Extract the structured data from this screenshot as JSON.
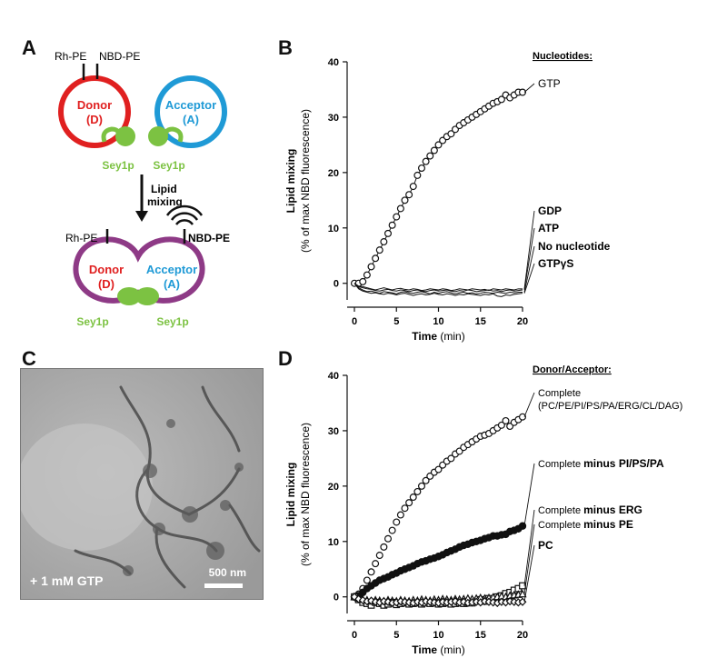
{
  "panels": {
    "a": "A",
    "b": "B",
    "c": "C",
    "d": "D"
  },
  "schematic": {
    "rh_pe": "Rh-PE",
    "nbd_pe_top": "NBD-PE",
    "donor": "Donor",
    "donor_abbr": "(D)",
    "acceptor": "Acceptor",
    "acceptor_abbr": "(A)",
    "sey1p": "Sey1p",
    "lipid": "Lipid",
    "mixing": "mixing",
    "nbd_pe_bottom": "NBD-PE",
    "colors": {
      "donor": "#e02020",
      "acceptor": "#1f9ad6",
      "fused": "#8e3a86",
      "protein": "#7cc242"
    }
  },
  "micrograph": {
    "condition": "+ 1 mM GTP",
    "scale": "500 nm"
  },
  "chart_data": [
    {
      "type": "line",
      "ylabel_line1": "Lipid mixing",
      "ylabel_line2": "(% of max NBD fluorescence)",
      "xlabel_bold": "Time",
      "xlabel_unit": "(min)",
      "xlim": [
        0,
        20
      ],
      "ylim": [
        0,
        40
      ],
      "xticks": [
        0,
        5,
        10,
        15,
        20
      ],
      "yticks": [
        0,
        10,
        20,
        30,
        40
      ],
      "legend_title": "Nucleotides:",
      "x": [
        0,
        0.5,
        1,
        1.5,
        2,
        2.5,
        3,
        3.5,
        4,
        4.5,
        5,
        5.5,
        6,
        6.5,
        7,
        7.5,
        8,
        8.5,
        9,
        9.5,
        10,
        10.5,
        11,
        11.5,
        12,
        12.5,
        13,
        13.5,
        14,
        14.5,
        15,
        15.5,
        16,
        16.5,
        17,
        17.5,
        18,
        18.5,
        19,
        19.5,
        20
      ],
      "series": [
        {
          "name": "GTP",
          "marker": "open-circle",
          "values": [
            0,
            0,
            0.3,
            1.5,
            3,
            4.5,
            6,
            7.5,
            9,
            10.5,
            12,
            13.5,
            15,
            16,
            17.5,
            19.5,
            20.8,
            22,
            23,
            24,
            25,
            25.8,
            26.5,
            27,
            27.8,
            28.5,
            29,
            29.5,
            30,
            30.5,
            31,
            31.5,
            32,
            32.5,
            32.8,
            33.2,
            34,
            33.5,
            34,
            34.5,
            34.5
          ]
        },
        {
          "name": "GDP",
          "marker": "none",
          "values": [
            0,
            -0.5,
            -0.6,
            -0.8,
            -1,
            -1.2,
            -1,
            -0.8,
            -1,
            -1.2,
            -1,
            -0.9,
            -1.1,
            -1.2,
            -1,
            -1.1,
            -1.3,
            -1.2,
            -1,
            -1.1,
            -1.2,
            -1,
            -1.1,
            -1.3,
            -1.2,
            -1,
            -1.1,
            -1.2,
            -1,
            -1.1,
            -1.2,
            -1.1,
            -1.3,
            -1,
            -1.1,
            -1.2,
            -1,
            -1.1,
            -1.2,
            -1,
            -1
          ]
        },
        {
          "name": "ATP",
          "marker": "none",
          "values": [
            0,
            -0.6,
            -0.8,
            -1,
            -1.1,
            -1.3,
            -1.4,
            -1.2,
            -1.1,
            -1.3,
            -1.4,
            -1.2,
            -1.3,
            -1.5,
            -1.3,
            -1.2,
            -1.4,
            -1.5,
            -1.3,
            -1.2,
            -1.4,
            -1.3,
            -1.2,
            -1.4,
            -1.5,
            -1.3,
            -1.4,
            -1.2,
            -1.3,
            -1.5,
            -1.4,
            -1.3,
            -1.2,
            -1.4,
            -1.3,
            -1.5,
            -1.3,
            -1.2,
            -1.4,
            -1.3,
            -1.2
          ]
        },
        {
          "name": "No nucleotide",
          "marker": "none",
          "values": [
            0,
            -0.8,
            -1.2,
            -1.5,
            -1.4,
            -1.6,
            -1.8,
            -1.5,
            -1.6,
            -1.7,
            -1.9,
            -1.6,
            -1.5,
            -1.7,
            -1.8,
            -1.6,
            -1.5,
            -1.7,
            -1.9,
            -1.6,
            -1.8,
            -1.6,
            -1.5,
            -1.7,
            -1.9,
            -1.7,
            -1.6,
            -1.8,
            -1.7,
            -1.9,
            -1.8,
            -1.6,
            -1.7,
            -1.8,
            -1.6,
            -1.7,
            -1.8,
            -1.6,
            -1.7,
            -1.6,
            -1.6
          ]
        },
        {
          "name": "GTPγS",
          "marker": "none",
          "values": [
            0,
            -1,
            -1.4,
            -1.6,
            -1.8,
            -1.7,
            -1.9,
            -2,
            -1.8,
            -1.9,
            -2.1,
            -1.9,
            -1.8,
            -2,
            -2.2,
            -2,
            -1.9,
            -2.1,
            -2,
            -1.8,
            -2,
            -2.1,
            -1.9,
            -2,
            -2.2,
            -2,
            -2.1,
            -1.9,
            -2,
            -2.1,
            -2.2,
            -2,
            -2.1,
            -1.9,
            -2.3,
            -2.4,
            -2.1,
            -2.2,
            -2,
            -1.9,
            -1.8
          ]
        }
      ],
      "legend_labels": [
        "GTP",
        "GDP",
        "ATP",
        "No nucleotide",
        "GTPγS"
      ]
    },
    {
      "type": "scatter",
      "ylabel_line1": "Lipid mixing",
      "ylabel_line2": "(% of max NBD fluorescence)",
      "xlabel_bold": "Time",
      "xlabel_unit": "(min)",
      "xlim": [
        0,
        20
      ],
      "ylim": [
        0,
        40
      ],
      "xticks": [
        0,
        5,
        10,
        15,
        20
      ],
      "yticks": [
        0,
        10,
        20,
        30,
        40
      ],
      "legend_title": "Donor/Acceptor:",
      "x": [
        0,
        0.5,
        1,
        1.5,
        2,
        2.5,
        3,
        3.5,
        4,
        4.5,
        5,
        5.5,
        6,
        6.5,
        7,
        7.5,
        8,
        8.5,
        9,
        9.5,
        10,
        10.5,
        11,
        11.5,
        12,
        12.5,
        13,
        13.5,
        14,
        14.5,
        15,
        15.5,
        16,
        16.5,
        17,
        17.5,
        18,
        18.5,
        19,
        19.5,
        20
      ],
      "series": [
        {
          "name": "Complete",
          "marker": "open-circle",
          "values": [
            0,
            0.5,
            1.5,
            3,
            4.5,
            6,
            7.5,
            9,
            10.5,
            12,
            13.5,
            14.8,
            16,
            17,
            18,
            19,
            20,
            21,
            21.8,
            22.5,
            23,
            23.8,
            24.5,
            25,
            25.8,
            26.3,
            27,
            27.5,
            28,
            28.5,
            29,
            29.2,
            29.5,
            30,
            30.5,
            31,
            31.8,
            30.8,
            31.5,
            32,
            32.5
          ]
        },
        {
          "name": "Complete minus PI/PS/PA",
          "marker": "filled-circle",
          "values": [
            0,
            0.2,
            0.8,
            1.5,
            2,
            2.5,
            3,
            3.3,
            3.6,
            4,
            4.3,
            4.7,
            5,
            5.3,
            5.6,
            6,
            6.3,
            6.5,
            6.8,
            7,
            7.3,
            7.6,
            8,
            8.3,
            8.6,
            9,
            9.3,
            9.5,
            9.8,
            10,
            10.2,
            10.5,
            10.7,
            11,
            11,
            11.2,
            11.3,
            11.8,
            12,
            12.3,
            12.8
          ]
        },
        {
          "name": "Complete minus ERG",
          "marker": "open-square",
          "values": [
            0,
            -0.5,
            -1,
            -1.2,
            -1.5,
            -1,
            -1.2,
            -1.5,
            -1.3,
            -1,
            -1.4,
            -1.2,
            -1.1,
            -1.3,
            -1.2,
            -1.1,
            -1.3,
            -1.1,
            -1.2,
            -1.1,
            -1.3,
            -1.2,
            -1.1,
            -1.3,
            -1.2,
            -1.1,
            -1.2,
            -1,
            -1.1,
            -0.8,
            -0.5,
            -0.8,
            -0.3,
            -0.6,
            0,
            0.2,
            0.6,
            0.8,
            1.2,
            1.5,
            2
          ]
        },
        {
          "name": "Complete minus PE",
          "marker": "open-triangle",
          "values": [
            0,
            -0.3,
            -0.5,
            -0.6,
            -0.8,
            -0.6,
            -0.7,
            -0.8,
            -0.6,
            -0.7,
            -0.8,
            -0.6,
            -0.7,
            -0.8,
            -0.6,
            -0.7,
            -0.5,
            -0.6,
            -0.7,
            -0.5,
            -0.6,
            -0.4,
            -0.5,
            -0.6,
            -0.4,
            -0.5,
            -0.4,
            -0.3,
            -0.4,
            -0.3,
            -0.2,
            -0.3,
            -0.2,
            -0.1,
            0,
            0.1,
            0,
            0.2,
            0.3,
            0.4,
            0.5
          ]
        },
        {
          "name": "PC",
          "marker": "open-diamond",
          "values": [
            0,
            -0.4,
            -0.6,
            -0.8,
            -0.7,
            -0.9,
            -1,
            -0.8,
            -0.9,
            -1.1,
            -1,
            -0.8,
            -0.9,
            -1,
            -1.1,
            -0.9,
            -1,
            -0.8,
            -0.9,
            -1,
            -1.1,
            -0.9,
            -1,
            -0.9,
            -0.8,
            -1,
            -0.9,
            -1.1,
            -1,
            -0.9,
            -1,
            -0.8,
            -0.9,
            -1,
            -1.1,
            -0.9,
            -1,
            -0.8,
            -0.9,
            -1,
            -0.9
          ]
        }
      ],
      "legend_labels": [
        {
          "normal": "Complete",
          "bold": "",
          "sub": "(PC/PE/PI/PS/PA/ERG/CL/DAG)"
        },
        {
          "normal": "Complete ",
          "bold": "minus PI/PS/PA",
          "sub": ""
        },
        {
          "normal": "Complete ",
          "bold": "minus ERG",
          "sub": ""
        },
        {
          "normal": "Complete ",
          "bold": "minus PE",
          "sub": ""
        },
        {
          "normal": "",
          "bold": "PC",
          "sub": ""
        }
      ]
    }
  ]
}
